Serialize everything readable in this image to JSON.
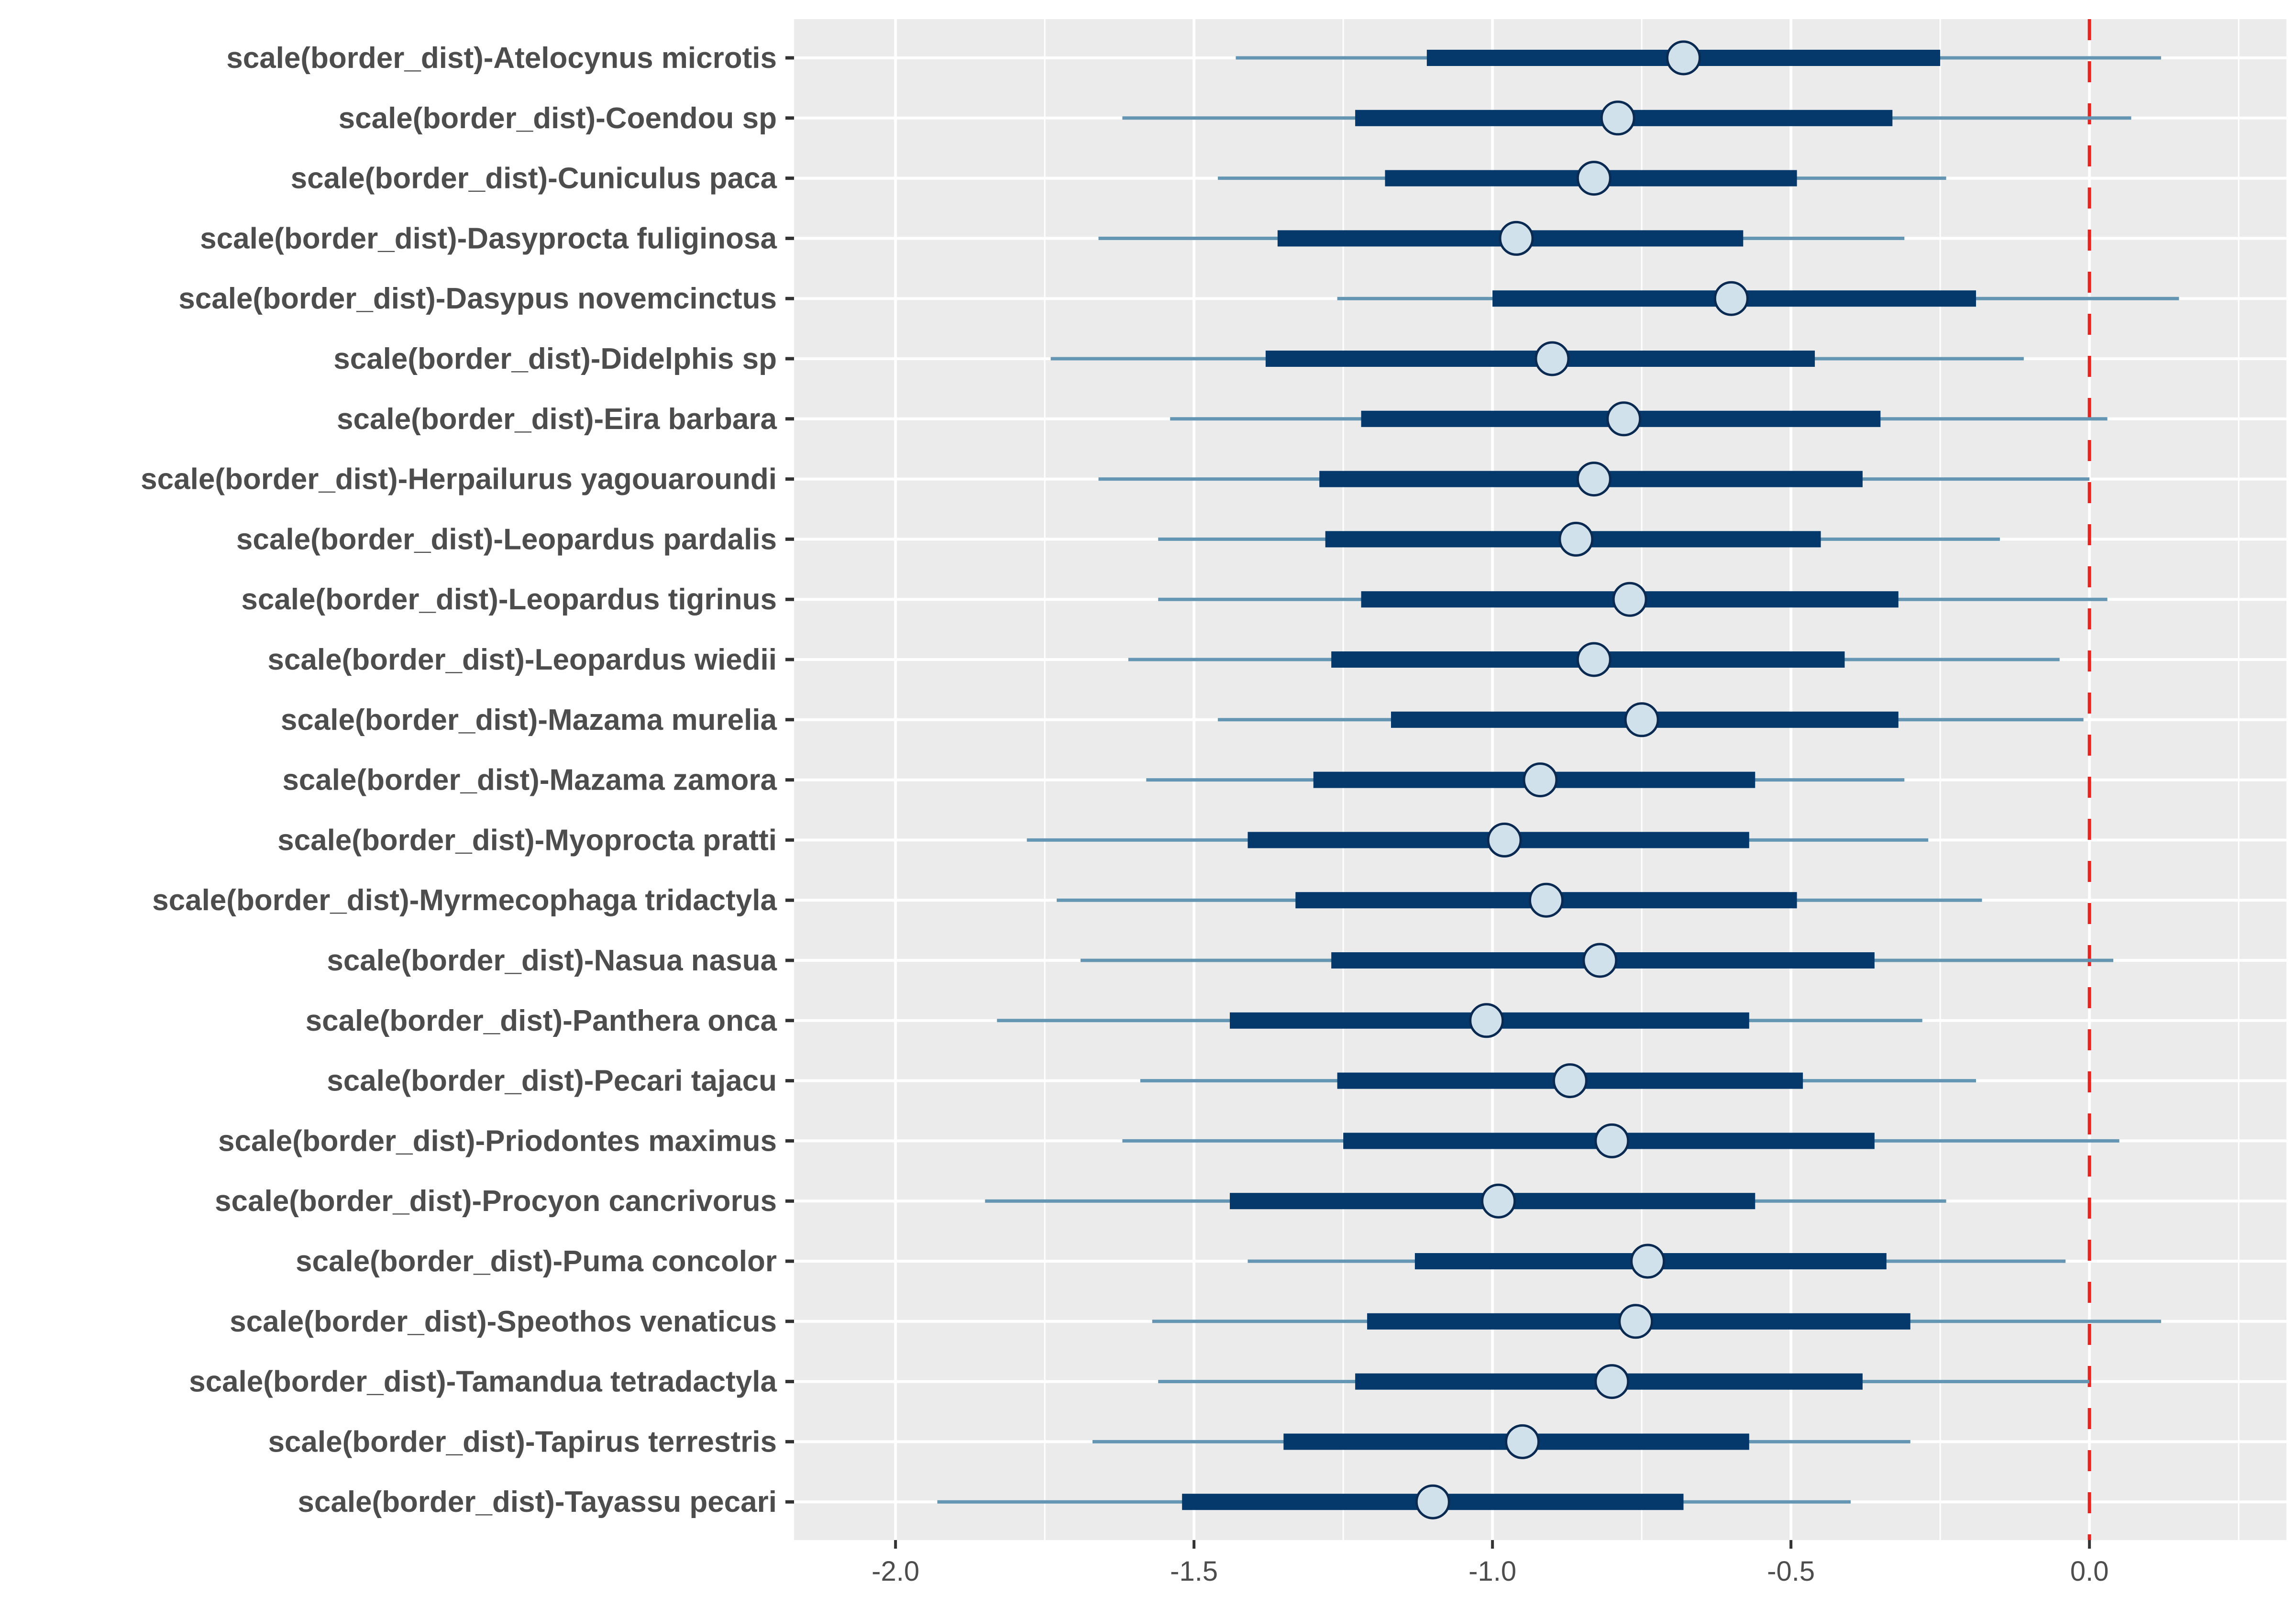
{
  "chart_data": {
    "type": "interval",
    "title": "",
    "xlabel": "",
    "ylabel": "",
    "xlim": [
      -2.17,
      0.33
    ],
    "xticks": [
      -2.0,
      -1.5,
      -1.0,
      -0.5,
      0.0
    ],
    "xtick_labels": [
      "-2.0",
      "-1.5",
      "-1.0",
      "-0.5",
      "0.0"
    ],
    "grid": true,
    "reference_line": {
      "x": 0.0,
      "style": "dashed",
      "color": "#e8221f"
    },
    "colors": {
      "outer_interval": "#6495b2",
      "inner_interval": "#05386b",
      "point_fill": "#d1e1ec",
      "point_stroke": "#0a2a52",
      "panel_bg": "#ebebeb",
      "grid": "#ffffff"
    },
    "categories": [
      "scale(border_dist)-Atelocynus microtis",
      "scale(border_dist)-Coendou sp",
      "scale(border_dist)-Cuniculus paca",
      "scale(border_dist)-Dasyprocta fuliginosa",
      "scale(border_dist)-Dasypus novemcinctus",
      "scale(border_dist)-Didelphis sp",
      "scale(border_dist)-Eira barbara",
      "scale(border_dist)-Herpailurus yagouaroundi",
      "scale(border_dist)-Leopardus pardalis",
      "scale(border_dist)-Leopardus tigrinus",
      "scale(border_dist)-Leopardus wiedii",
      "scale(border_dist)-Mazama murelia",
      "scale(border_dist)-Mazama zamora",
      "scale(border_dist)-Myoprocta pratti",
      "scale(border_dist)-Myrmecophaga tridactyla",
      "scale(border_dist)-Nasua nasua",
      "scale(border_dist)-Panthera onca",
      "scale(border_dist)-Pecari tajacu",
      "scale(border_dist)-Priodontes maximus",
      "scale(border_dist)-Procyon cancrivorus",
      "scale(border_dist)-Puma concolor",
      "scale(border_dist)-Speothos venaticus",
      "scale(border_dist)-Tamandua tetradactyla",
      "scale(border_dist)-Tapirus terrestris",
      "scale(border_dist)-Tayassu pecari"
    ],
    "series": [
      {
        "name": "outer_low",
        "values": [
          -1.43,
          -1.62,
          -1.46,
          -1.66,
          -1.26,
          -1.74,
          -1.54,
          -1.66,
          -1.56,
          -1.56,
          -1.61,
          -1.46,
          -1.58,
          -1.78,
          -1.73,
          -1.69,
          -1.83,
          -1.59,
          -1.62,
          -1.85,
          -1.41,
          -1.57,
          -1.56,
          -1.67,
          -1.93
        ]
      },
      {
        "name": "inner_low",
        "values": [
          -1.11,
          -1.23,
          -1.18,
          -1.36,
          -1.0,
          -1.38,
          -1.22,
          -1.29,
          -1.28,
          -1.22,
          -1.27,
          -1.17,
          -1.3,
          -1.41,
          -1.33,
          -1.27,
          -1.44,
          -1.26,
          -1.25,
          -1.44,
          -1.13,
          -1.21,
          -1.23,
          -1.35,
          -1.52
        ]
      },
      {
        "name": "median",
        "values": [
          -0.68,
          -0.79,
          -0.83,
          -0.96,
          -0.6,
          -0.9,
          -0.78,
          -0.83,
          -0.86,
          -0.77,
          -0.83,
          -0.75,
          -0.92,
          -0.98,
          -0.91,
          -0.82,
          -1.01,
          -0.87,
          -0.8,
          -0.99,
          -0.74,
          -0.76,
          -0.8,
          -0.95,
          -1.1
        ]
      },
      {
        "name": "inner_high",
        "values": [
          -0.25,
          -0.33,
          -0.49,
          -0.58,
          -0.19,
          -0.46,
          -0.35,
          -0.38,
          -0.45,
          -0.32,
          -0.41,
          -0.32,
          -0.56,
          -0.57,
          -0.49,
          -0.36,
          -0.57,
          -0.48,
          -0.36,
          -0.56,
          -0.34,
          -0.3,
          -0.38,
          -0.57,
          -0.68
        ]
      },
      {
        "name": "outer_high",
        "values": [
          0.12,
          0.07,
          -0.24,
          -0.31,
          0.15,
          -0.11,
          0.03,
          0.0,
          -0.15,
          0.03,
          -0.05,
          -0.01,
          -0.31,
          -0.27,
          -0.18,
          0.04,
          -0.28,
          -0.19,
          0.05,
          -0.24,
          -0.04,
          0.12,
          0.0,
          -0.3,
          -0.4
        ]
      }
    ]
  }
}
